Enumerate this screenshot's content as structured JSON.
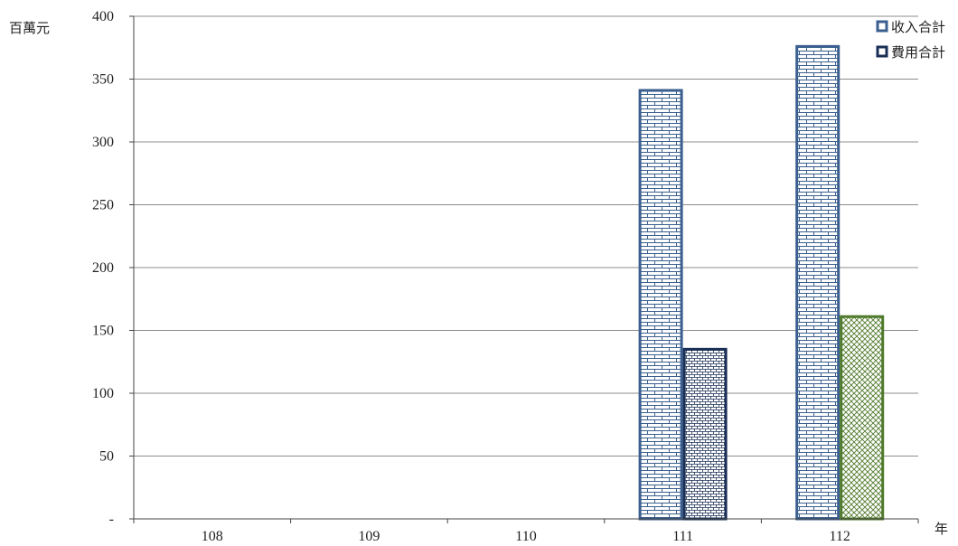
{
  "chart_data": {
    "type": "bar",
    "categories": [
      "108",
      "109",
      "110",
      "111",
      "112"
    ],
    "series": [
      {
        "name": "收入合計",
        "values": [
          null,
          null,
          null,
          341,
          376
        ],
        "color": "#3a5f8f"
      },
      {
        "name": "費用合計",
        "values": [
          null,
          null,
          null,
          135,
          161
        ],
        "color": "#1a2f55"
      }
    ],
    "highlight": {
      "series": 1,
      "category": "112",
      "color": "#4f7a2c",
      "pattern": "crosshatch"
    },
    "ylabel": "百萬元",
    "xlabel": "年",
    "ylim": [
      0,
      400
    ],
    "yticks": [
      {
        "value": 0,
        "label": "-"
      },
      {
        "value": 50,
        "label": "50"
      },
      {
        "value": 100,
        "label": "100"
      },
      {
        "value": 150,
        "label": "150"
      },
      {
        "value": 200,
        "label": "200"
      },
      {
        "value": 250,
        "label": "250"
      },
      {
        "value": 300,
        "label": "300"
      },
      {
        "value": 350,
        "label": "350"
      },
      {
        "value": 400,
        "label": "400"
      }
    ],
    "grid": true,
    "legend_position": "top-right"
  }
}
